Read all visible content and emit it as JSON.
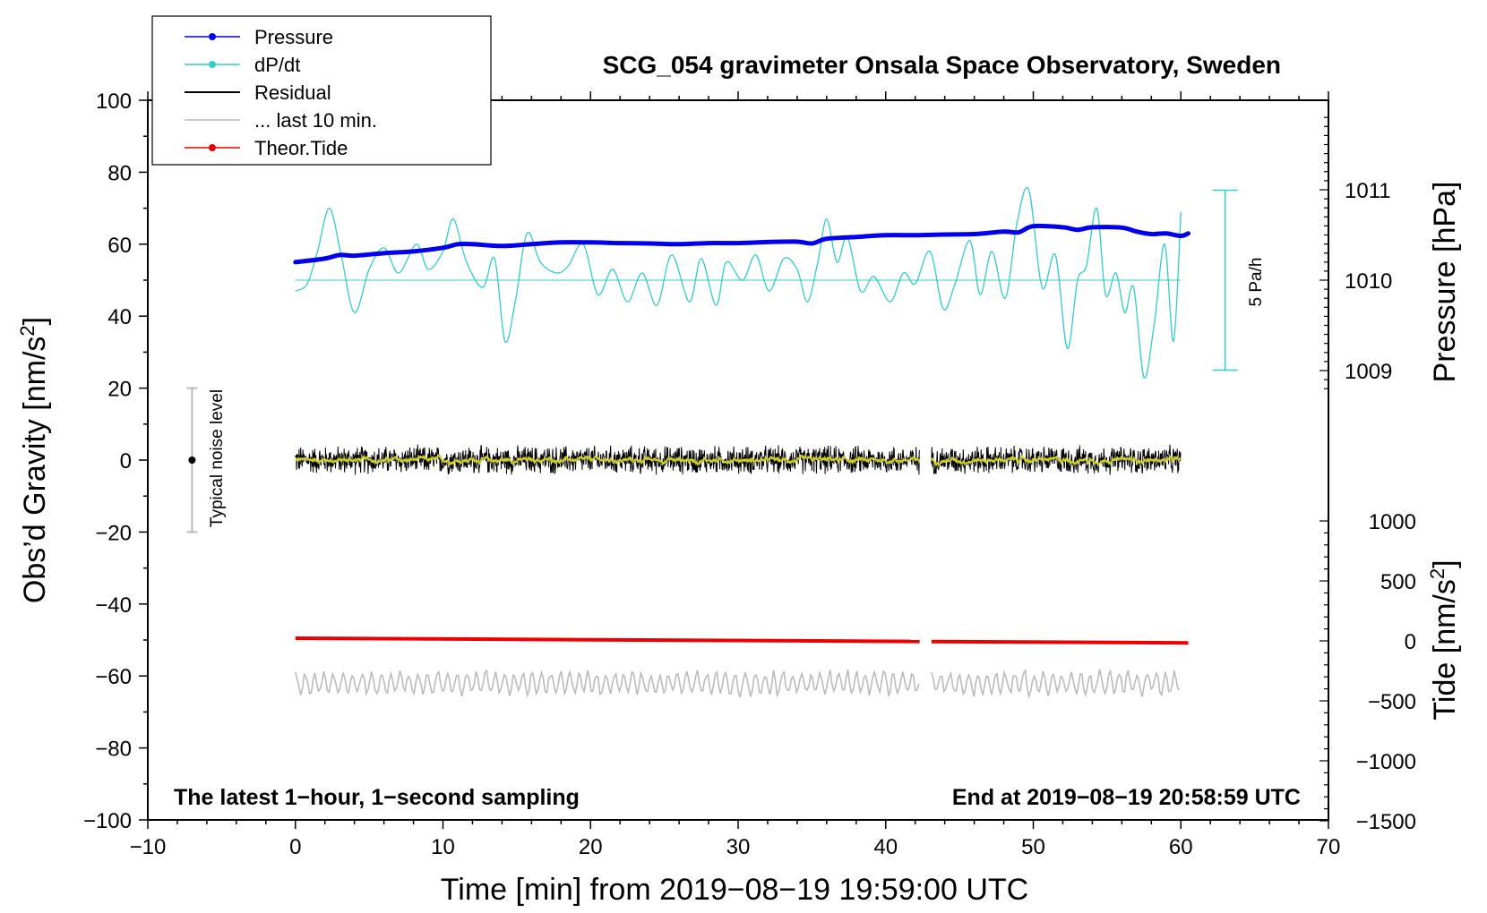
{
  "chart_data": {
    "type": "line",
    "title": "SCG_054 gravimeter Onsala Space Observatory, Sweden",
    "xlabel": "Time [min] from 2019−08−19 19:59:00 UTC",
    "ylabel": "Obs’d Gravity [nm/s",
    "ylabel_sup": "2",
    "ylabel_end": "]",
    "y2label": "Pressure [hPa]",
    "y3label": "Tide [nm/s",
    "y3label_sup": "2",
    "y3label_end": "]",
    "xlim": [
      -10,
      70
    ],
    "ylim": [
      -100,
      100
    ],
    "x_ticks": [
      -10,
      0,
      10,
      20,
      30,
      40,
      50,
      60,
      70
    ],
    "x_tick_labels": [
      "−10",
      "0",
      "10",
      "20",
      "30",
      "40",
      "50",
      "60",
      "70"
    ],
    "y_ticks": [
      -100,
      -80,
      -60,
      -40,
      -20,
      0,
      20,
      40,
      60,
      80,
      100
    ],
    "y_tick_labels": [
      "−100",
      "−80",
      "−60",
      "−40",
      "−20",
      "0",
      "20",
      "40",
      "60",
      "80",
      "100"
    ],
    "pressure_axis": {
      "ticks": [
        1009,
        1010,
        1011
      ],
      "tick_labels": [
        "1009",
        "1010",
        "1011"
      ]
    },
    "tide_axis": {
      "ticks": [
        -1500,
        -1000,
        -500,
        0,
        500,
        1000
      ],
      "tick_labels": [
        "−1500",
        "−1000",
        "−500",
        "0",
        "500",
        "1000"
      ]
    },
    "legend": {
      "placement": "top-left",
      "entries": [
        {
          "label": "Pressure",
          "color": "#0000ee",
          "marker": true
        },
        {
          "label": "dP/dt",
          "color": "#33cccc",
          "marker": true
        },
        {
          "label": "Residual",
          "color": "#000000",
          "marker": false
        },
        {
          "label": "... last 10 min.",
          "color": "#bbbbbb",
          "marker": false
        },
        {
          "label": "Theor.Tide",
          "color": "#ee0000",
          "marker": true
        }
      ]
    },
    "annotations": {
      "noise": "Typical noise level",
      "dpdt_scale": "5 Pa/h",
      "bottom_left": "The latest 1−hour, 1−second sampling",
      "bottom_right": "End at 2019−08−19 20:58:59 UTC"
    },
    "noise_bar": {
      "x": -7,
      "center": 0,
      "half_range": 20
    },
    "dpdt_scale_bar": {
      "x": 63,
      "center": 50,
      "half_range": 25
    },
    "series": [
      {
        "name": "Pressure",
        "color": "#0000ee",
        "unit": "gravity-axis y",
        "x": [
          0,
          2,
          3,
          4,
          6,
          8,
          10,
          11,
          12,
          14,
          16,
          18,
          20,
          22,
          24,
          26,
          28,
          30,
          32,
          34,
          35,
          36,
          38,
          40,
          42,
          44,
          46,
          48,
          49,
          50,
          52,
          53,
          54,
          56,
          57,
          58,
          59,
          60,
          60.5
        ],
        "values": [
          55,
          56,
          57,
          56.8,
          57.5,
          58,
          59,
          60,
          60,
          59.5,
          60,
          60.5,
          60.5,
          60.3,
          60.2,
          60,
          60.3,
          60.3,
          60.6,
          60.7,
          60.2,
          61.5,
          62,
          62.5,
          62.5,
          62.7,
          62.8,
          63.5,
          63.3,
          65,
          64.7,
          64,
          64.7,
          64.6,
          63.5,
          62.8,
          63,
          62.3,
          63
        ]
      },
      {
        "name": "dP/dt",
        "color": "#33cccc",
        "unit": "gravity-axis y",
        "x": [
          0,
          0.8,
          1.5,
          2.3,
          3.1,
          4.0,
          5.0,
          6.0,
          7.0,
          8.2,
          9.0,
          10.0,
          10.7,
          11.6,
          12.7,
          13.5,
          14.2,
          14.9,
          15.7,
          16.6,
          17.7,
          18.5,
          19.5,
          20.5,
          21.5,
          22.5,
          23.5,
          24.5,
          25.5,
          26.7,
          27.5,
          28.5,
          29.2,
          30.3,
          31.2,
          32.1,
          33.1,
          34.0,
          34.7,
          35.4,
          36.0,
          36.7,
          37.4,
          38.3,
          39.2,
          40.3,
          41.2,
          42.0,
          43.0,
          43.9,
          44.7,
          45.7,
          46.4,
          47.2,
          48.1,
          48.9,
          49.7,
          50.6,
          51.5,
          52.3,
          53.0,
          53.6,
          54.3,
          54.9,
          55.6,
          56.2,
          56.8,
          57.5,
          58.2,
          58.9,
          59.5,
          60.0
        ],
        "values": [
          47,
          49,
          58,
          70,
          57,
          41,
          53,
          59,
          52,
          60,
          53,
          58,
          67,
          55,
          48,
          56,
          33,
          44,
          63,
          55,
          52,
          54,
          60,
          46,
          53,
          44,
          52,
          43,
          57,
          44,
          56,
          43,
          55,
          50,
          57,
          47,
          56,
          53,
          44,
          55,
          67,
          55,
          62,
          47,
          51,
          44,
          52,
          49,
          58,
          42,
          49,
          61,
          46,
          58,
          45,
          66,
          75,
          48,
          57,
          31,
          50,
          54,
          70,
          46,
          52,
          41,
          48,
          23,
          38,
          60,
          33,
          69
        ]
      },
      {
        "name": "Residual",
        "color": "#000000",
        "unit": "gravity-axis y",
        "segments": [
          [
            0,
            42.3
          ],
          [
            43.1,
            60
          ]
        ],
        "center": 0,
        "spread": 3,
        "smoothed_color": "#cccc22"
      },
      {
        "name": "... last 10 min.",
        "color": "#bbbbbb",
        "unit": "gravity-axis y",
        "segments": [
          [
            0,
            42.3
          ],
          [
            43.1,
            60
          ]
        ],
        "center": -62,
        "spread": 3
      },
      {
        "name": "Theor.Tide",
        "color": "#ee0000",
        "unit": "gravity-axis y",
        "segments": [
          [
            0,
            42.3
          ],
          [
            43.1,
            60.5
          ]
        ],
        "start": -49.5,
        "end": -50.8
      }
    ]
  }
}
